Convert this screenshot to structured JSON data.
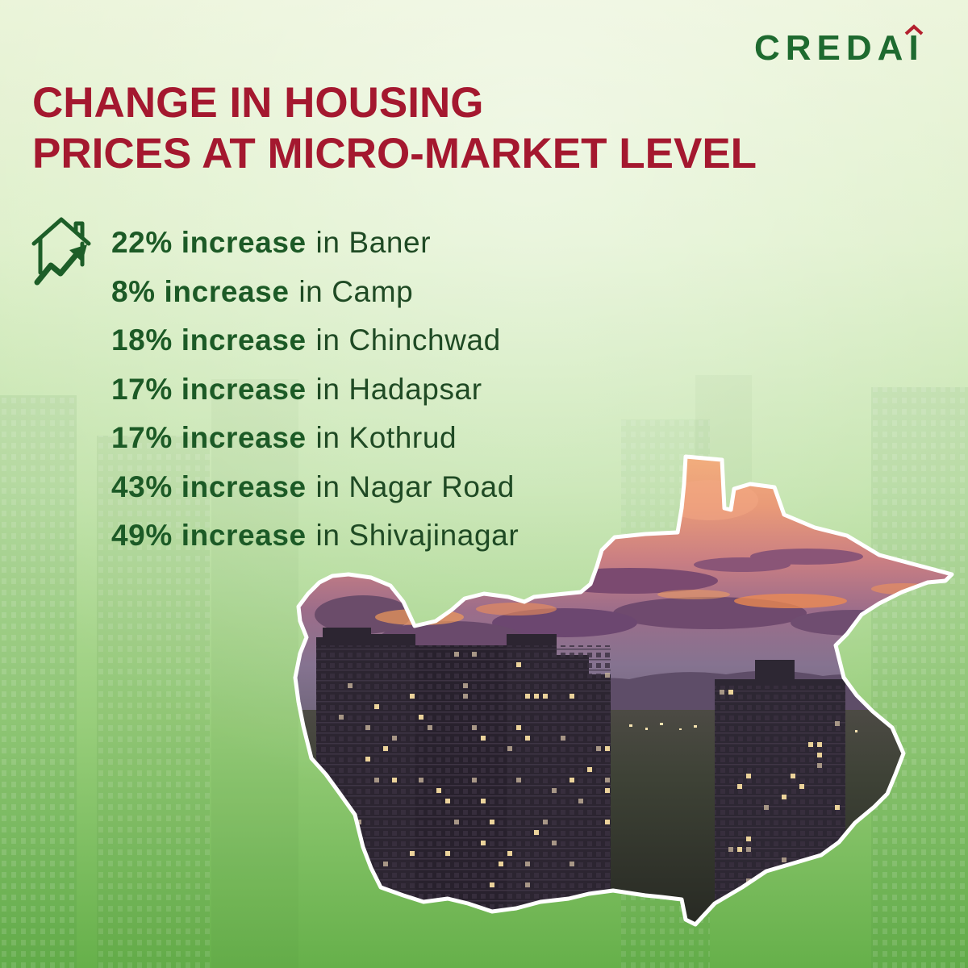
{
  "brand": {
    "name": "CREDAI"
  },
  "title": {
    "line1": "CHANGE IN HOUSING",
    "line2": "PRICES AT MICRO-MARKET LEVEL"
  },
  "stats_icon": "house-trend-up-icon",
  "stats": [
    {
      "highlight": "22% increase",
      "location": "in Baner"
    },
    {
      "highlight": "8% increase",
      "location": "in Camp"
    },
    {
      "highlight": "18% increase",
      "location": "in Chinchwad"
    },
    {
      "highlight": "17% increase",
      "location": "in Hadapsar"
    },
    {
      "highlight": "17% increase",
      "location": "in Kothrud"
    },
    {
      "highlight": "43% increase",
      "location": "in Nagar Road"
    },
    {
      "highlight": "49% increase",
      "location": "in Shivajinagar"
    }
  ],
  "colors": {
    "brand": "#1e6a2f",
    "brand_accent": "#b3202e",
    "title": "#a4182f",
    "highlight": "#1c5a26",
    "text": "#1f4a24",
    "map_outline": "#ffffff",
    "background_top": "#e9f3d6",
    "background_bottom": "#66b04a"
  }
}
